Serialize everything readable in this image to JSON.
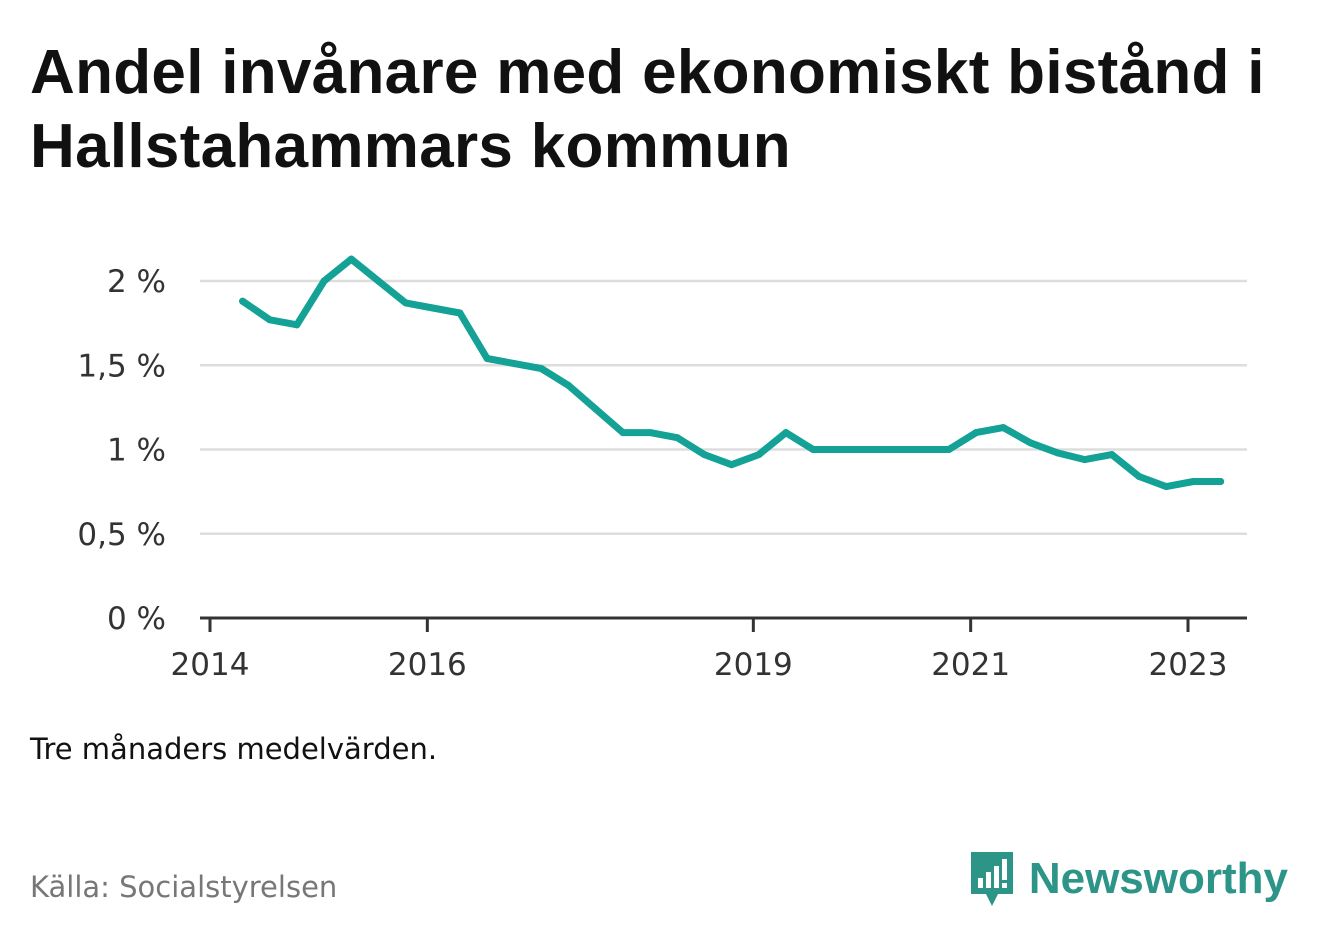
{
  "title": "Andel invånare med ekonomiskt bistånd i Hallstahammars kommun",
  "note": "Tre månaders medelvärden.",
  "source": "Källa: Socialstyrelsen",
  "brand": {
    "name": "Newsworthy",
    "icon": "newsworthy-logo-icon"
  },
  "colors": {
    "line": "#14a196",
    "grid": "#dddddd",
    "axis": "#333333",
    "brand": "#2d9488"
  },
  "chart_data": {
    "type": "line",
    "title": "Andel invånare med ekonomiskt bistånd i Hallstahammars kommun",
    "xlabel": "",
    "ylabel": "",
    "ylim": [
      0,
      2.2
    ],
    "xlim": [
      2014.0,
      2023.5
    ],
    "grid": true,
    "yticks": [
      0,
      0.5,
      1,
      1.5,
      2
    ],
    "ytick_labels": [
      "0 %",
      "0,5 %",
      "1 %",
      "1,5 %",
      "2 %"
    ],
    "xticks": [
      2014,
      2016,
      2019,
      2021,
      2023
    ],
    "xtick_labels": [
      "2014",
      "2016",
      "2019",
      "2021",
      "2023"
    ],
    "series": [
      {
        "unit": "%",
        "x": [
          2014.3,
          2014.55,
          2014.8,
          2015.05,
          2015.3,
          2015.55,
          2015.8,
          2016.05,
          2016.3,
          2016.55,
          2016.8,
          2017.05,
          2017.3,
          2017.55,
          2017.8,
          2018.05,
          2018.3,
          2018.55,
          2018.8,
          2019.05,
          2019.3,
          2019.55,
          2019.8,
          2020.05,
          2020.3,
          2020.55,
          2020.8,
          2021.05,
          2021.3,
          2021.55,
          2021.8,
          2022.05,
          2022.3,
          2022.55,
          2022.8,
          2023.05,
          2023.3
        ],
        "y": [
          1.88,
          1.77,
          1.74,
          2.0,
          2.13,
          2.0,
          1.87,
          1.84,
          1.81,
          1.54,
          1.51,
          1.48,
          1.38,
          1.24,
          1.1,
          1.1,
          1.07,
          0.97,
          0.91,
          0.97,
          1.1,
          1.0,
          1.0,
          1.0,
          1.0,
          1.0,
          1.0,
          1.1,
          1.13,
          1.04,
          0.98,
          0.94,
          0.97,
          0.84,
          0.78,
          0.81,
          0.81
        ]
      }
    ]
  }
}
